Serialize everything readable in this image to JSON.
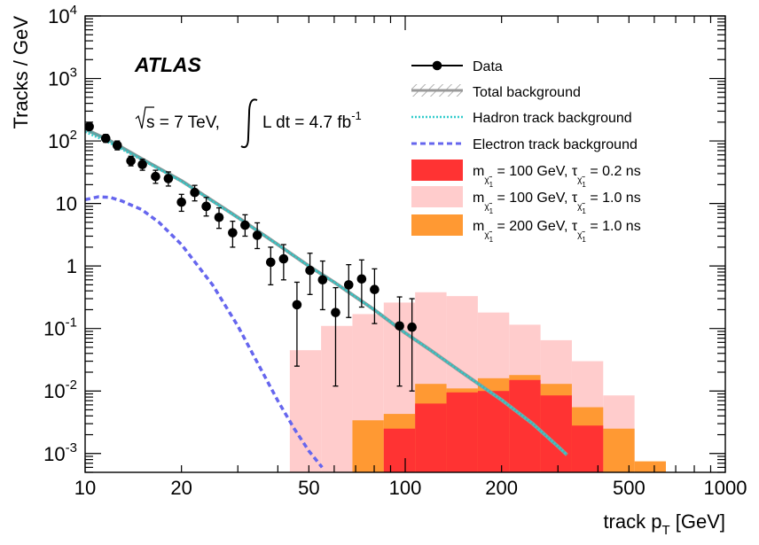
{
  "chart_data": {
    "type": "histogram",
    "experiment_label": "ATLAS",
    "energy_label": {
      "sqrt": "s",
      "energy": " = 7 TeV,",
      "lumi": "L dt = 4.7 fb",
      "lumi_exp": "-1"
    },
    "xlabel": {
      "main": "track p",
      "sub": "T",
      "unit": " [GeV]"
    },
    "ylabel": "Tracks / GeV",
    "xscale": "log",
    "yscale": "log",
    "xlim": [
      10,
      1000
    ],
    "ylim": [
      0.0005,
      10000
    ],
    "xticks": [
      {
        "value": 10,
        "label": "10"
      },
      {
        "value": 20,
        "label": "20"
      },
      {
        "value": 50,
        "label": "50"
      },
      {
        "value": 100,
        "label": "100"
      },
      {
        "value": 200,
        "label": "200"
      },
      {
        "value": 500,
        "label": "500"
      },
      {
        "value": 1000,
        "label": "1000"
      }
    ],
    "yticks": [
      {
        "value": 0.001,
        "base": "10",
        "exp": "-3"
      },
      {
        "value": 0.01,
        "base": "10",
        "exp": "-2"
      },
      {
        "value": 0.1,
        "base": "10",
        "exp": "-1"
      },
      {
        "value": 1,
        "base": "1",
        "exp": ""
      },
      {
        "value": 10,
        "base": "10",
        "exp": ""
      },
      {
        "value": 100,
        "base": "10",
        "exp": "2"
      },
      {
        "value": 1000,
        "base": "10",
        "exp": "3"
      },
      {
        "value": 10000,
        "base": "10",
        "exp": "4"
      }
    ],
    "legend": {
      "position": "top-right",
      "entries": [
        {
          "key": "data",
          "symbol": "marker-line",
          "text": "Data"
        },
        {
          "key": "total",
          "symbol": "hatched",
          "text": "Total background"
        },
        {
          "key": "hadron",
          "symbol": "dotted",
          "text": "Hadron track background"
        },
        {
          "key": "electron",
          "symbol": "dashed",
          "text": "Electron track background"
        },
        {
          "key": "sig1",
          "symbol": "box",
          "text_m": "m",
          "text_mid": " = 100 GeV,  τ",
          "text_end": " = 0.2 ns",
          "sub": "χ̃",
          "subsub": "1",
          "sup": "±"
        },
        {
          "key": "sig2",
          "symbol": "box",
          "text_m": "m",
          "text_mid": " = 100 GeV,  τ",
          "text_end": " = 1.0 ns",
          "sub": "χ̃",
          "subsub": "1",
          "sup": "±"
        },
        {
          "key": "sig3",
          "symbol": "box",
          "text_m": "m",
          "text_mid": " = 200 GeV,  τ",
          "text_end": " = 1.0 ns",
          "sub": "χ̃",
          "subsub": "1",
          "sup": "±"
        }
      ]
    },
    "colors": {
      "data": "#000000",
      "total": "#999999",
      "hadron": "#33cccc",
      "electron": "#6666ee",
      "sig1": "#ff3333",
      "sig2": "#ffcccc",
      "sig3": "#ff9933"
    },
    "series": [
      {
        "key": "data",
        "kind": "points",
        "points": [
          {
            "x": 10.3,
            "y": 170,
            "ylo": 150,
            "yhi": 192
          },
          {
            "x": 11.6,
            "y": 110,
            "ylo": 95,
            "yhi": 127
          },
          {
            "x": 12.6,
            "y": 85,
            "ylo": 72,
            "yhi": 100
          },
          {
            "x": 13.9,
            "y": 48,
            "ylo": 40,
            "yhi": 57
          },
          {
            "x": 15.1,
            "y": 42,
            "ylo": 34,
            "yhi": 51
          },
          {
            "x": 16.6,
            "y": 27,
            "ylo": 21,
            "yhi": 34
          },
          {
            "x": 18.2,
            "y": 25,
            "ylo": 19,
            "yhi": 32
          },
          {
            "x": 20.0,
            "y": 10.5,
            "ylo": 7.5,
            "yhi": 14
          },
          {
            "x": 22.0,
            "y": 15,
            "ylo": 11,
            "yhi": 19.5
          },
          {
            "x": 23.9,
            "y": 9,
            "ylo": 6.3,
            "yhi": 12.5
          },
          {
            "x": 26.2,
            "y": 6,
            "ylo": 4,
            "yhi": 8.5
          },
          {
            "x": 28.9,
            "y": 3.4,
            "ylo": 2,
            "yhi": 5.2
          },
          {
            "x": 31.6,
            "y": 4.5,
            "ylo": 3,
            "yhi": 6.6
          },
          {
            "x": 34.5,
            "y": 3.1,
            "ylo": 1.9,
            "yhi": 4.9
          },
          {
            "x": 38.0,
            "y": 1.15,
            "ylo": 0.5,
            "yhi": 2.0
          },
          {
            "x": 41.7,
            "y": 1.3,
            "ylo": 0.6,
            "yhi": 2.2
          },
          {
            "x": 45.9,
            "y": 0.24,
            "ylo": 0.025,
            "yhi": 0.55
          },
          {
            "x": 50.4,
            "y": 0.85,
            "ylo": 0.35,
            "yhi": 1.6
          },
          {
            "x": 55.2,
            "y": 0.6,
            "ylo": 0.2,
            "yhi": 1.2
          },
          {
            "x": 60.6,
            "y": 0.18,
            "ylo": 0.012,
            "yhi": 0.45
          },
          {
            "x": 66.6,
            "y": 0.5,
            "ylo": 0.15,
            "yhi": 1.05
          },
          {
            "x": 73.1,
            "y": 0.62,
            "ylo": 0.22,
            "yhi": 1.25
          },
          {
            "x": 80.2,
            "y": 0.42,
            "ylo": 0.12,
            "yhi": 0.9
          },
          {
            "x": 96.0,
            "y": 0.11,
            "ylo": 0.012,
            "yhi": 0.32
          },
          {
            "x": 105.0,
            "y": 0.105,
            "ylo": 0.01,
            "yhi": 0.3
          }
        ]
      },
      {
        "key": "total",
        "kind": "curve",
        "points": [
          [
            10,
            155
          ],
          [
            12,
            100
          ],
          [
            15,
            52
          ],
          [
            20,
            23
          ],
          [
            25,
            11
          ],
          [
            30,
            6
          ],
          [
            40,
            2.2
          ],
          [
            50,
            1.0
          ],
          [
            60,
            0.55
          ],
          [
            70,
            0.32
          ],
          [
            80,
            0.2
          ],
          [
            100,
            0.085
          ],
          [
            120,
            0.045
          ],
          [
            150,
            0.02
          ],
          [
            200,
            0.0072
          ],
          [
            250,
            0.003
          ],
          [
            300,
            0.0013
          ],
          [
            320,
            0.00095
          ]
        ]
      },
      {
        "key": "hadron",
        "kind": "curve",
        "points": [
          [
            10,
            140
          ],
          [
            12,
            92
          ],
          [
            15,
            50
          ],
          [
            20,
            22.5
          ],
          [
            25,
            10.8
          ],
          [
            30,
            5.9
          ],
          [
            40,
            2.2
          ],
          [
            50,
            1.0
          ],
          [
            60,
            0.55
          ],
          [
            70,
            0.32
          ],
          [
            80,
            0.2
          ],
          [
            100,
            0.085
          ],
          [
            120,
            0.045
          ],
          [
            150,
            0.02
          ],
          [
            200,
            0.0072
          ],
          [
            250,
            0.003
          ],
          [
            300,
            0.0013
          ],
          [
            320,
            0.00095
          ]
        ]
      },
      {
        "key": "electron",
        "kind": "curve",
        "points": [
          [
            10,
            11.5
          ],
          [
            11,
            12.8
          ],
          [
            12,
            12.5
          ],
          [
            13,
            11
          ],
          [
            15,
            8
          ],
          [
            17,
            5
          ],
          [
            20,
            2.2
          ],
          [
            25,
            0.5
          ],
          [
            30,
            0.11
          ],
          [
            35,
            0.025
          ],
          [
            40,
            0.007
          ],
          [
            45,
            0.0025
          ],
          [
            50,
            0.0011
          ],
          [
            55,
            0.0006
          ]
        ]
      },
      {
        "key": "sig2",
        "kind": "hist",
        "bins": [
          {
            "lo": 43.6,
            "hi": 54.6,
            "y": 0.045
          },
          {
            "lo": 54.6,
            "hi": 68.4,
            "y": 0.11
          },
          {
            "lo": 68.4,
            "hi": 85.7,
            "y": 0.17
          },
          {
            "lo": 85.7,
            "hi": 107.4,
            "y": 0.26
          },
          {
            "lo": 107.4,
            "hi": 134.6,
            "y": 0.38
          },
          {
            "lo": 134.6,
            "hi": 168.6,
            "y": 0.33
          },
          {
            "lo": 168.6,
            "hi": 211.3,
            "y": 0.18
          },
          {
            "lo": 211.3,
            "hi": 264.7,
            "y": 0.115
          },
          {
            "lo": 264.7,
            "hi": 331.6,
            "y": 0.065
          },
          {
            "lo": 331.6,
            "hi": 415.5,
            "y": 0.03
          },
          {
            "lo": 415.5,
            "hi": 520.6,
            "y": 0.0085
          }
        ]
      },
      {
        "key": "sig3",
        "kind": "hist",
        "bins": [
          {
            "lo": 68.4,
            "hi": 85.7,
            "y": 0.0034
          },
          {
            "lo": 85.7,
            "hi": 107.4,
            "y": 0.0043
          },
          {
            "lo": 107.4,
            "hi": 134.6,
            "y": 0.013
          },
          {
            "lo": 134.6,
            "hi": 168.6,
            "y": 0.011
          },
          {
            "lo": 168.6,
            "hi": 211.3,
            "y": 0.016
          },
          {
            "lo": 211.3,
            "hi": 264.7,
            "y": 0.018
          },
          {
            "lo": 264.7,
            "hi": 331.6,
            "y": 0.013
          },
          {
            "lo": 331.6,
            "hi": 415.5,
            "y": 0.0055
          },
          {
            "lo": 415.5,
            "hi": 520.6,
            "y": 0.0025
          },
          {
            "lo": 520.6,
            "hi": 652.2,
            "y": 0.00075
          }
        ]
      },
      {
        "key": "sig1",
        "kind": "hist",
        "bins": [
          {
            "lo": 85.7,
            "hi": 107.4,
            "y": 0.0025
          },
          {
            "lo": 107.4,
            "hi": 134.6,
            "y": 0.0063
          },
          {
            "lo": 134.6,
            "hi": 168.6,
            "y": 0.0095
          },
          {
            "lo": 168.6,
            "hi": 211.3,
            "y": 0.01
          },
          {
            "lo": 211.3,
            "hi": 264.7,
            "y": 0.015
          },
          {
            "lo": 264.7,
            "hi": 331.6,
            "y": 0.0085
          },
          {
            "lo": 331.6,
            "hi": 415.5,
            "y": 0.0028
          }
        ]
      }
    ]
  }
}
